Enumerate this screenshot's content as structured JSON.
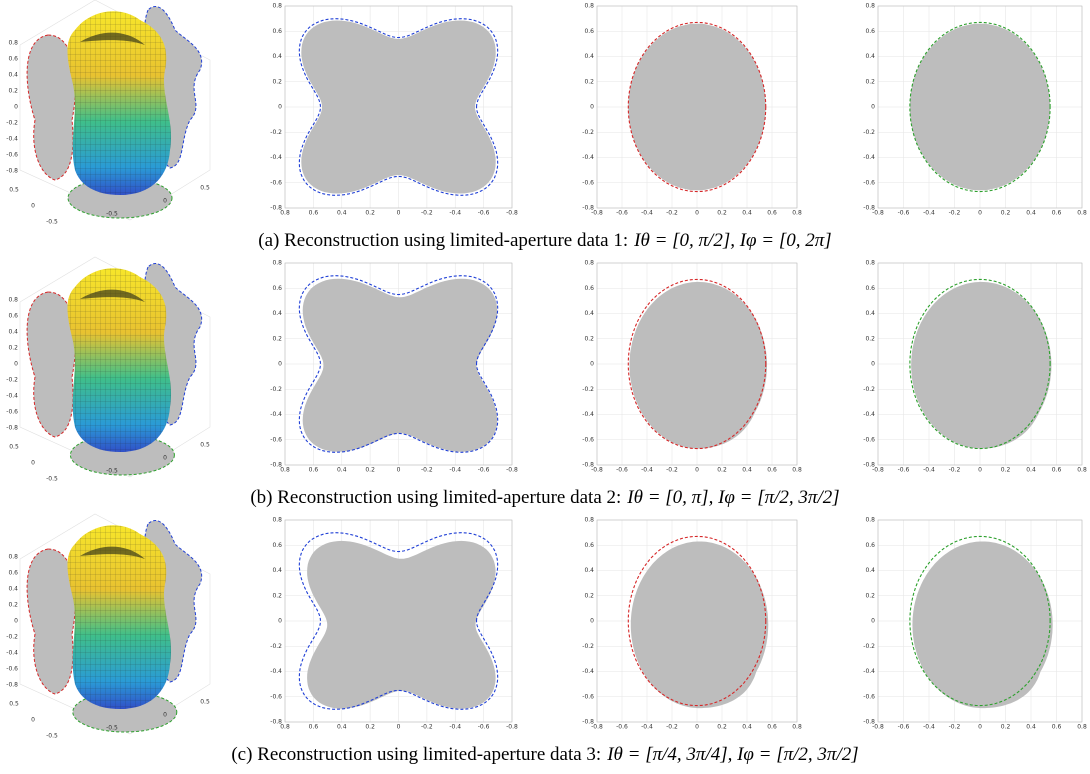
{
  "figure": {
    "rows": [
      {
        "caption": "(a) Reconstruction using limited-aperture data 1:",
        "math": "Iθ = [0, π/2], Iφ = [0, 2π]"
      },
      {
        "caption": "(b) Reconstruction using limited-aperture data 2:",
        "math": "Iθ = [0, π], Iφ = [π/2, 3π/2]"
      },
      {
        "caption": "(c) Reconstruction using limited-aperture data 3:",
        "math": "Iθ = [π/4, 3π/4], Iφ = [π/2, 3π/2]"
      }
    ],
    "axes2d": {
      "yticks": [
        "0.8",
        "0.6",
        "0.4",
        "0.2",
        "0",
        "-0.2",
        "-0.4",
        "-0.6",
        "-0.8"
      ],
      "xticks_reversed": [
        "0.8",
        "0.6",
        "0.4",
        "0.2",
        "0",
        "-0.2",
        "-0.4",
        "-0.6",
        "-0.8"
      ],
      "xticks": [
        "-0.8",
        "-0.6",
        "-0.4",
        "-0.2",
        "0",
        "0.2",
        "0.4",
        "0.6",
        "0.8"
      ]
    },
    "axes3d": {
      "zticks": [
        "0.8",
        "0.6",
        "0.4",
        "0.2",
        "0",
        "-0.2",
        "-0.4",
        "-0.6",
        "-0.8"
      ],
      "left_ticks": [
        "0.5",
        "0",
        "-0.5"
      ],
      "right_ticks": [
        "-0.5",
        "0",
        "0.5"
      ]
    }
  }
}
